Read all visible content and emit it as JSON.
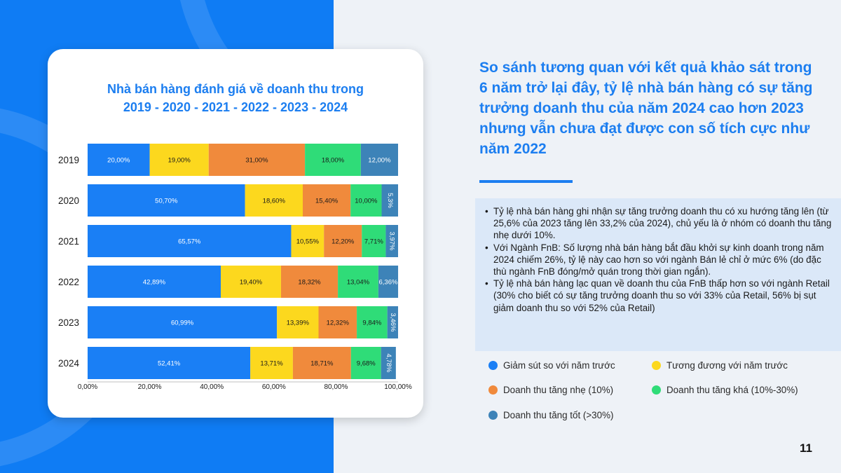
{
  "chart_data": {
    "type": "bar",
    "orientation": "horizontal",
    "stacked": true,
    "title_lines": [
      "Nhà bán hàng đánh giá về doanh thu trong",
      "2019 - 2020 - 2021 - 2022 - 2023 - 2024"
    ],
    "categories": [
      "2019",
      "2020",
      "2021",
      "2022",
      "2023",
      "2024"
    ],
    "series": [
      {
        "name": "Giảm sút so với năm trước",
        "color": "#1a7ff5",
        "values": [
          20,
          50.7,
          65.57,
          42.89,
          60.99,
          52.41
        ],
        "labels": [
          "20,00%",
          "50,70%",
          "65,57%",
          "42,89%",
          "60,99%",
          "52,41%"
        ]
      },
      {
        "name": "Tương đương với năm trước",
        "color": "#fcd81e",
        "values": [
          19,
          18.6,
          10.55,
          19.4,
          13.39,
          13.71
        ],
        "labels": [
          "19,00%",
          "18,60%",
          "10,55%",
          "19,40%",
          "13,39%",
          "13,71%"
        ]
      },
      {
        "name": "Doanh thu tăng nhẹ (10%)",
        "color": "#f08a3c",
        "values": [
          31,
          15.4,
          12.2,
          18.32,
          12.32,
          18.71
        ],
        "labels": [
          "31,00%",
          "15,40%",
          "12,20%",
          "18,32%",
          "12,32%",
          "18,71%"
        ]
      },
      {
        "name": "Doanh thu tăng khá (10%-30%)",
        "color": "#2fdc78",
        "values": [
          18,
          10,
          7.71,
          13.04,
          9.84,
          9.68
        ],
        "labels": [
          "18,00%",
          "10,00%",
          "7,71%",
          "13,04%",
          "9,84%",
          "9,68%"
        ]
      },
      {
        "name": "Doanh thu tăng tốt (>30%)",
        "color": "#3d83b8",
        "values": [
          12,
          5.3,
          3.97,
          6.36,
          3.46,
          4.78
        ],
        "labels": [
          "12,00%",
          "5,3%",
          "3,97%",
          "6,36%",
          "3,46%",
          "4,78%"
        ]
      }
    ],
    "xlim": [
      0,
      100
    ],
    "x_ticks": [
      "0,00%",
      "20,00%",
      "40,00%",
      "60,00%",
      "80,00%",
      "100,00%"
    ],
    "grid": false
  },
  "heading": "So sánh tương quan với kết quả khảo sát trong 6 năm trở lại đây, tỷ lệ nhà bán hàng có sự tăng trưởng doanh thu của năm 2024 cao hơn 2023 nhưng vẫn chưa đạt được con số tích cực như năm 2022",
  "notes": [
    "Tỷ lệ nhà bán hàng ghi nhận sự tăng trưởng doanh thu có xu hướng tăng lên (từ 25,6% của 2023 tăng lên 33,2% của 2024), chủ yếu là ở nhóm có doanh thu tăng nhẹ dưới 10%.",
    "Với Ngành FnB: Số lượng nhà bán hàng bắt đầu khởi sự kinh doanh trong năm 2024 chiếm 26%, tỷ lệ này cao hơn so với ngành Bán lẻ chỉ ở mức 6% (do đặc thù ngành FnB đóng/mở quán trong thời gian ngắn).",
    "Tỷ lệ nhà bán hàng lạc quan về doanh thu của FnB thấp hơn so với ngành Retail (30% cho biết có sự tăng trưởng doanh thu so với 33% của Retail, 56% bị sụt giảm doanh thu so với 52% của Retail)"
  ],
  "page_number": "11",
  "colors": {
    "left_panel": "#0f7cf4",
    "accent": "#1c7ef0",
    "notes_bg": "#dbe8f8"
  }
}
